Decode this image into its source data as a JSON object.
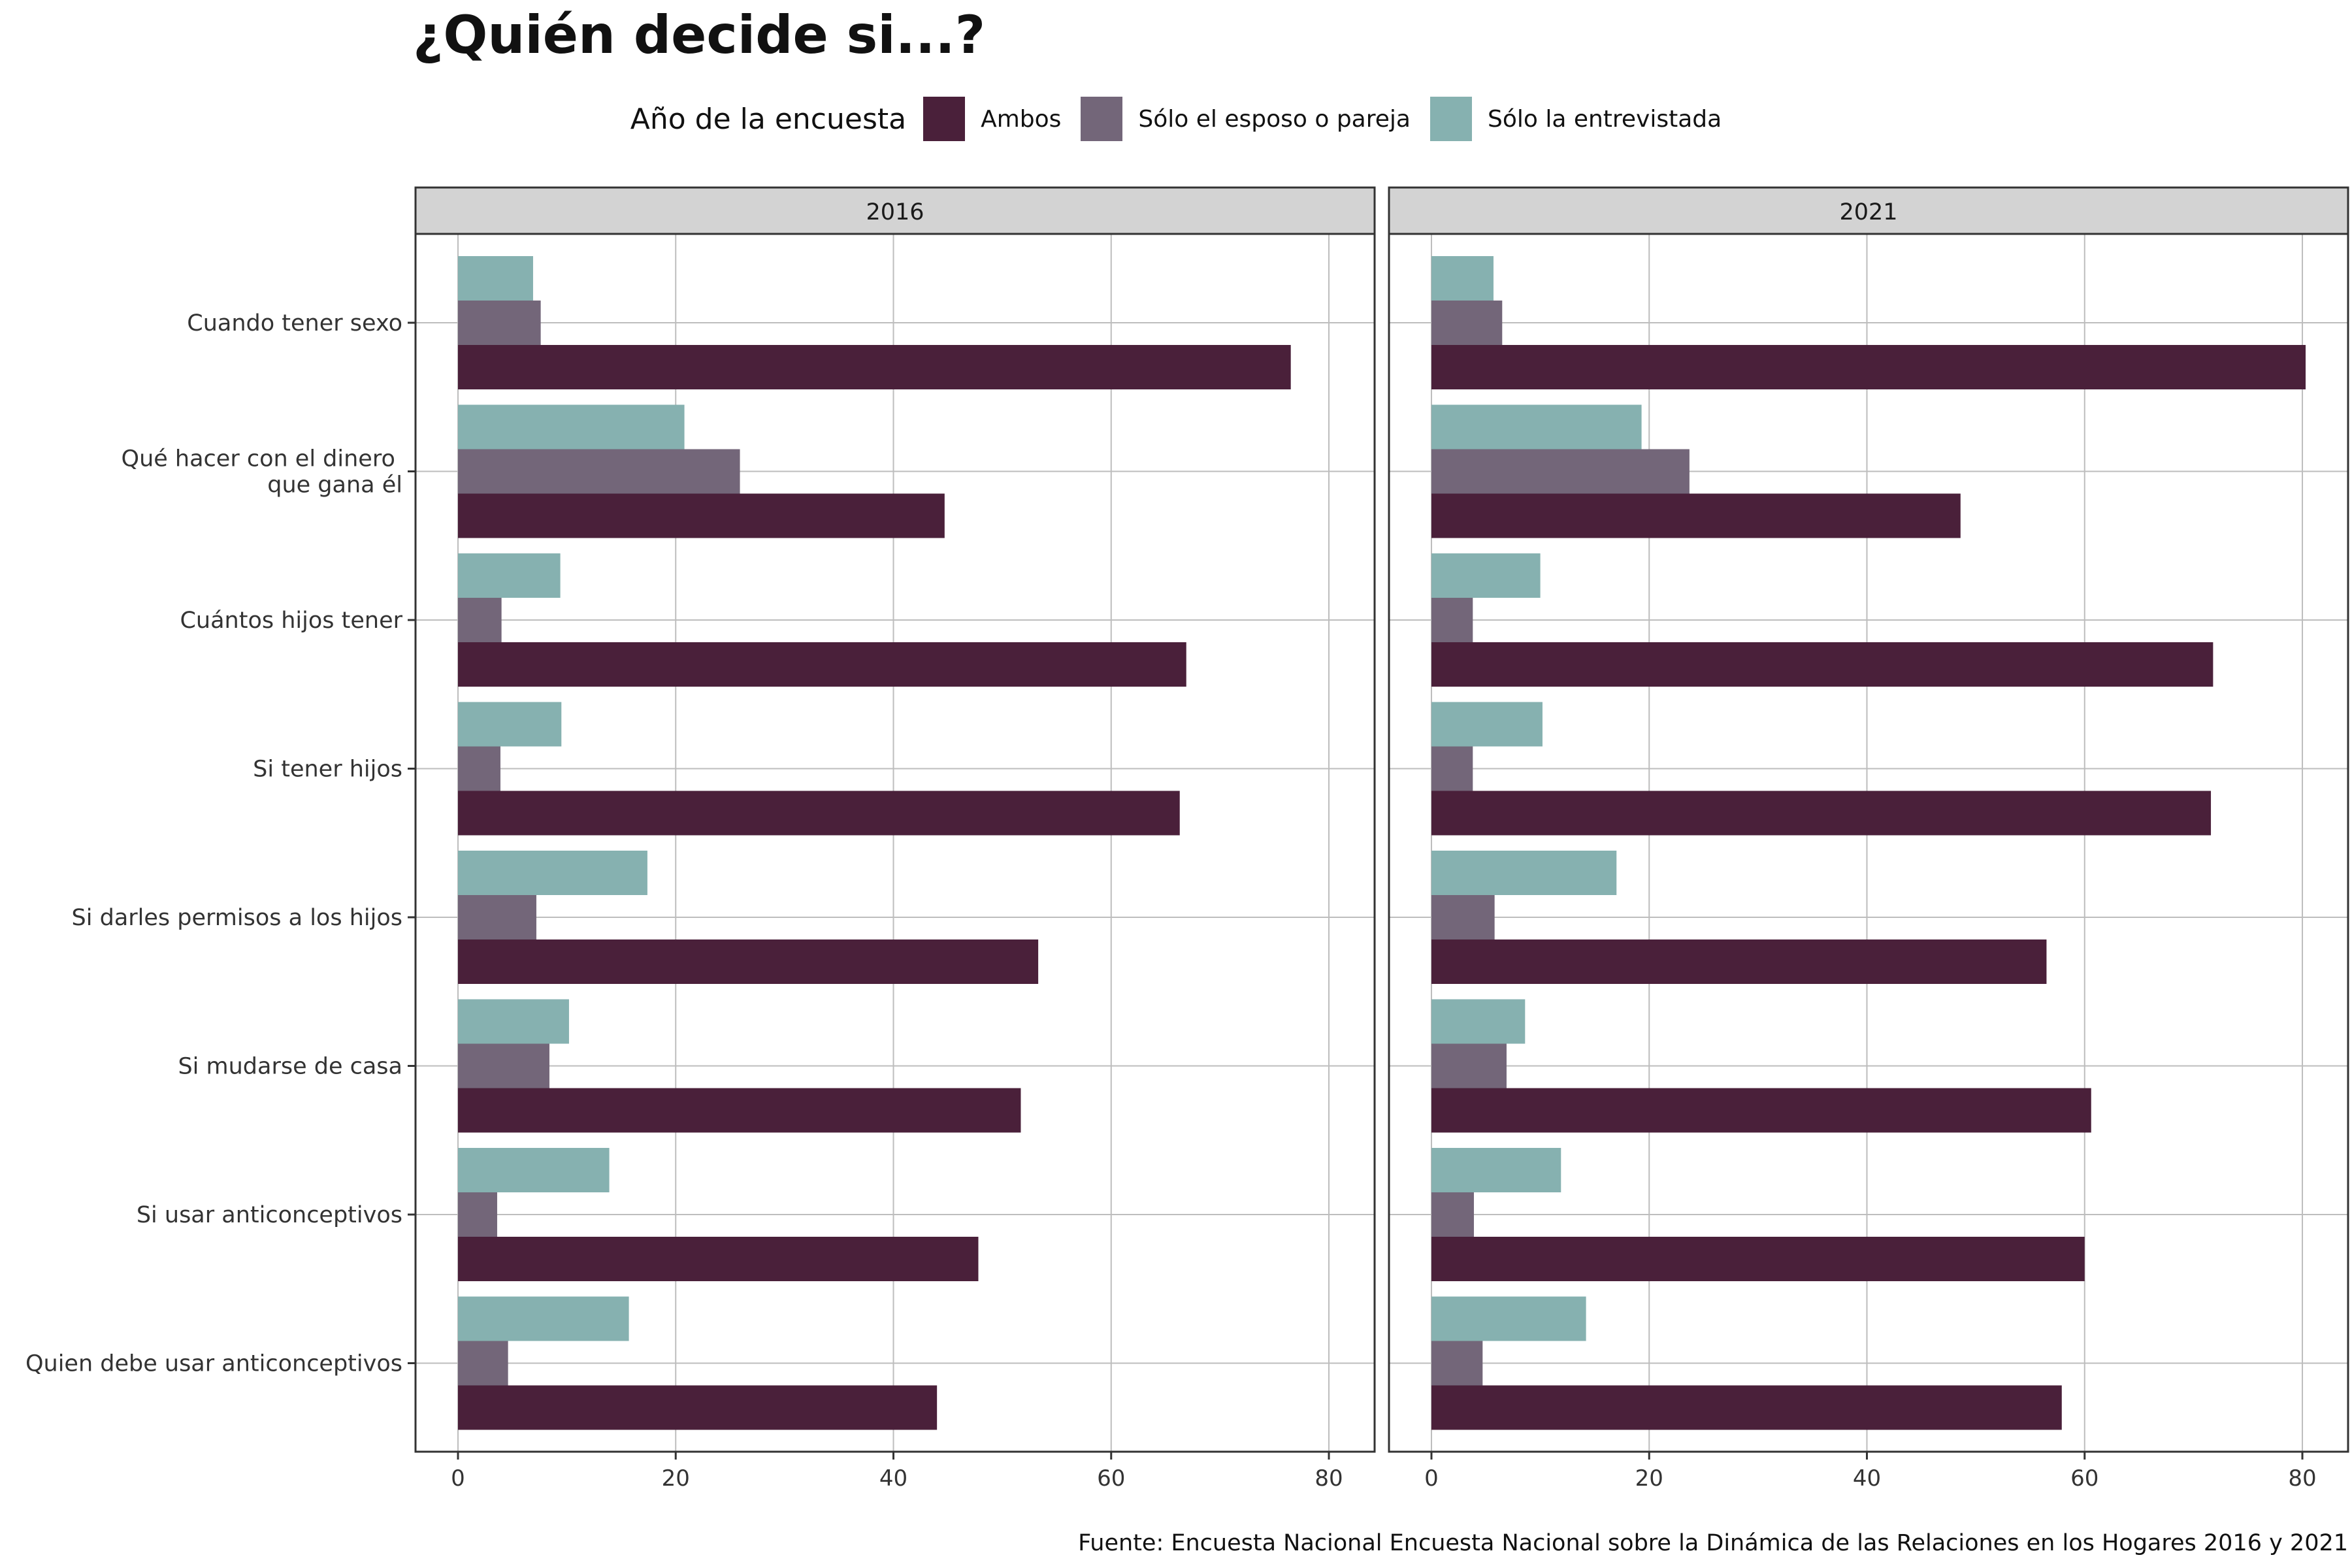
{
  "title": "¿Quién decide si...?",
  "caption": "Fuente: Encuesta Nacional Encuesta Nacional sobre la Dinámica de las Relaciones en los Hogares 2016 y 2021",
  "legend": {
    "title": "Año de la encuesta",
    "items": [
      {
        "label": "Ambos",
        "color": "#4a203a"
      },
      {
        "label": "Sólo el esposo o pareja",
        "color": "#736679"
      },
      {
        "label": "Sólo la entrevistada",
        "color": "#86b1b0"
      }
    ]
  },
  "chart_data": {
    "type": "bar",
    "orientation": "horizontal",
    "facets": [
      "2016",
      "2021"
    ],
    "categories": [
      "Cuando tener sexo",
      "Qué hacer con el dinero \nque gana él",
      "Cuántos hijos tener",
      "Si tener hijos",
      "Si darles permisos a los hijos",
      "Si mudarse de casa",
      "Si usar anticonceptivos",
      "Quien debe usar anticonceptivos"
    ],
    "series": [
      {
        "name": "Ambos",
        "color": "#4a203a",
        "values": {
          "2016": [
            76.5,
            44.7,
            66.9,
            66.3,
            53.3,
            51.7,
            47.8,
            44.0
          ],
          "2021": [
            80.3,
            48.6,
            71.8,
            71.6,
            56.5,
            60.6,
            60.0,
            57.9
          ]
        }
      },
      {
        "name": "Sólo el esposo o pareja",
        "color": "#736679",
        "values": {
          "2016": [
            7.6,
            25.9,
            4.0,
            3.9,
            7.2,
            8.4,
            3.6,
            4.6
          ],
          "2021": [
            6.5,
            23.7,
            3.8,
            3.8,
            5.8,
            6.9,
            3.9,
            4.7
          ]
        }
      },
      {
        "name": "Sólo la entrevistada",
        "color": "#86b1b0",
        "values": {
          "2016": [
            6.9,
            20.8,
            9.4,
            9.5,
            17.4,
            10.2,
            13.9,
            15.7
          ],
          "2021": [
            5.7,
            19.3,
            10.0,
            10.2,
            17.0,
            8.6,
            11.9,
            14.2
          ]
        }
      }
    ],
    "xticks": [
      0,
      20,
      40,
      60,
      80
    ],
    "xlim": [
      -3.9,
      84.2
    ],
    "grid": true
  }
}
